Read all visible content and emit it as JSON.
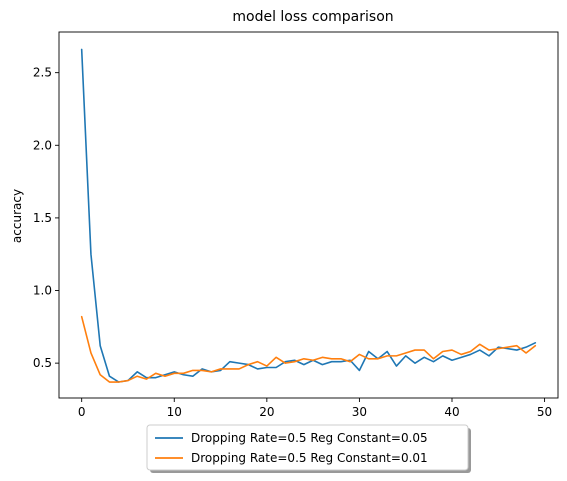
{
  "chart_data": {
    "type": "line",
    "title": "model loss comparison",
    "xlabel": "",
    "ylabel": "accuracy",
    "xlim": [
      -2.45,
      51.45
    ],
    "ylim": [
      0.26,
      2.78
    ],
    "xticks": [
      0,
      10,
      20,
      30,
      40,
      50
    ],
    "yticks": [
      0.5,
      1.0,
      1.5,
      2.0,
      2.5
    ],
    "xtick_labels": [
      "0",
      "10",
      "20",
      "30",
      "40",
      "50"
    ],
    "ytick_labels": [
      "0.5",
      "1.0",
      "1.5",
      "2.0",
      "2.5"
    ],
    "grid": false,
    "legend_placement": "below-center",
    "x": [
      0,
      1,
      2,
      3,
      4,
      5,
      6,
      7,
      8,
      9,
      10,
      11,
      12,
      13,
      14,
      15,
      16,
      17,
      18,
      19,
      20,
      21,
      22,
      23,
      24,
      25,
      26,
      27,
      28,
      29,
      30,
      31,
      32,
      33,
      34,
      35,
      36,
      37,
      38,
      39,
      40,
      41,
      42,
      43,
      44,
      45,
      46,
      47,
      48,
      49
    ],
    "series": [
      {
        "name": "Dropping Rate=0.5 Reg Constant=0.05",
        "color": "#1f77b4",
        "values": [
          2.66,
          1.25,
          0.62,
          0.41,
          0.37,
          0.38,
          0.44,
          0.4,
          0.4,
          0.42,
          0.44,
          0.42,
          0.41,
          0.46,
          0.44,
          0.45,
          0.51,
          0.5,
          0.49,
          0.46,
          0.47,
          0.47,
          0.51,
          0.52,
          0.49,
          0.52,
          0.49,
          0.51,
          0.51,
          0.52,
          0.45,
          0.58,
          0.53,
          0.58,
          0.48,
          0.55,
          0.5,
          0.54,
          0.51,
          0.55,
          0.52,
          0.54,
          0.56,
          0.59,
          0.55,
          0.61,
          0.6,
          0.59,
          0.61,
          0.64
        ]
      },
      {
        "name": "Dropping Rate=0.5 Reg Constant=0.01",
        "color": "#ff7f0e",
        "values": [
          0.82,
          0.57,
          0.42,
          0.37,
          0.37,
          0.38,
          0.41,
          0.39,
          0.43,
          0.41,
          0.43,
          0.43,
          0.45,
          0.45,
          0.44,
          0.46,
          0.46,
          0.46,
          0.49,
          0.51,
          0.48,
          0.54,
          0.5,
          0.51,
          0.53,
          0.52,
          0.54,
          0.53,
          0.53,
          0.51,
          0.56,
          0.53,
          0.53,
          0.55,
          0.55,
          0.57,
          0.59,
          0.59,
          0.53,
          0.58,
          0.59,
          0.56,
          0.58,
          0.63,
          0.59,
          0.6,
          0.61,
          0.62,
          0.57,
          0.62
        ]
      }
    ]
  }
}
